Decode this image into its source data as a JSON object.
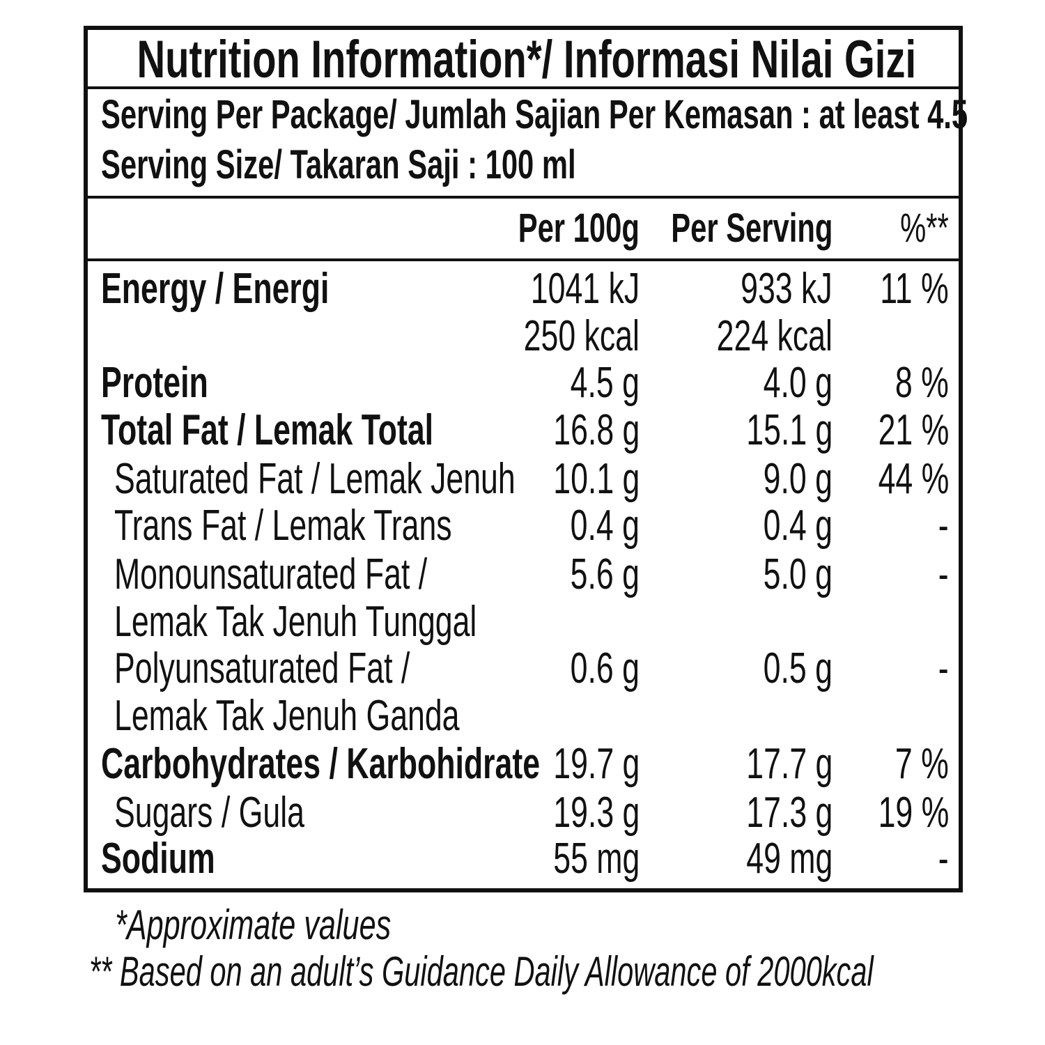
{
  "title": "Nutrition Information*/ Informasi Nilai Gizi",
  "serving_per_package": "Serving Per Package/ Jumlah Sajian Per Kemasan : at least 4.5",
  "serving_size": "Serving Size/ Takaran Saji : 100 ml",
  "columns": {
    "per100": "Per 100g",
    "perserving": "Per Serving",
    "pct": "%**"
  },
  "rows": [
    {
      "label": "Energy / Energi",
      "per100": "1041 kJ",
      "perserving": "933 kJ",
      "pct": "11 %"
    },
    {
      "label": "",
      "per100": "250 kcal",
      "perserving": "224 kcal",
      "pct": ""
    },
    {
      "label": "Protein",
      "per100": "4.5 g",
      "perserving": "4.0 g",
      "pct": "8 %"
    },
    {
      "label": "Total Fat / Lemak Total",
      "per100": "16.8 g",
      "perserving": "15.1 g",
      "pct": "21 %"
    },
    {
      "label": "Saturated Fat / Lemak Jenuh",
      "per100": "10.1 g",
      "perserving": "9.0 g",
      "pct": "44 %"
    },
    {
      "label": "Trans Fat / Lemak Trans",
      "per100": "0.4 g",
      "perserving": "0.4 g",
      "pct": "-"
    },
    {
      "label": "Monounsaturated Fat /",
      "per100": "5.6 g",
      "perserving": "5.0 g",
      "pct": "-"
    },
    {
      "label": "Lemak Tak Jenuh Tunggal",
      "per100": "",
      "perserving": "",
      "pct": ""
    },
    {
      "label": "Polyunsaturated Fat /",
      "per100": "0.6 g",
      "perserving": "0.5 g",
      "pct": "-"
    },
    {
      "label": "Lemak Tak Jenuh Ganda",
      "per100": "",
      "perserving": "",
      "pct": ""
    },
    {
      "label": "Carbohydrates / Karbohidrate",
      "per100": "19.7 g",
      "perserving": "17.7 g",
      "pct": "7 %"
    },
    {
      "label": "Sugars / Gula",
      "per100": "19.3 g",
      "perserving": "17.3 g",
      "pct": "19 %"
    },
    {
      "label": "Sodium",
      "per100": "55 mg",
      "perserving": "49 mg",
      "pct": "-"
    }
  ],
  "footnotes": [
    "*Approximate values",
    "** Based on an adult’s Guidance Daily Allowance of 2000kcal"
  ]
}
